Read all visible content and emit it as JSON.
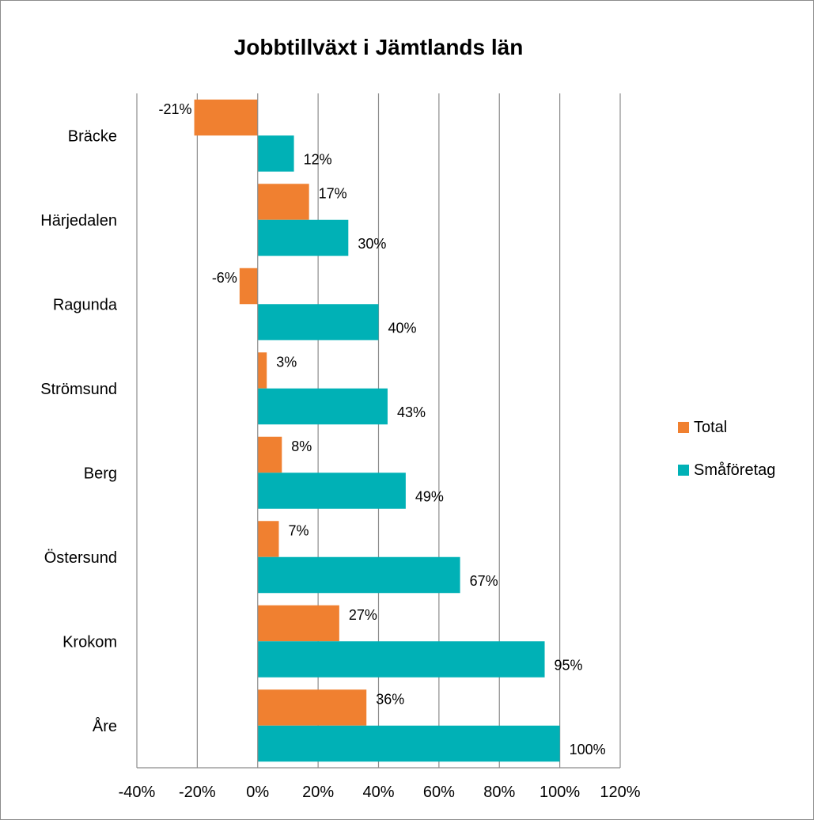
{
  "chart_data": {
    "type": "bar",
    "orientation": "horizontal",
    "title": "Jobbtillväxt i Jämtlands län",
    "categories": [
      "Bräcke",
      "Härjedalen",
      "Ragunda",
      "Strömsund",
      "Berg",
      "Östersund",
      "Krokom",
      "Åre"
    ],
    "series": [
      {
        "name": "Total",
        "color": "#F08030",
        "values": [
          -21,
          17,
          -6,
          3,
          8,
          7,
          27,
          36
        ],
        "labels": [
          "-21%",
          "17%",
          "-6%",
          "3%",
          "8%",
          "7%",
          "27%",
          "36%"
        ]
      },
      {
        "name": "Småföretag",
        "color": "#00B1B6",
        "values": [
          12,
          30,
          40,
          43,
          49,
          67,
          95,
          100
        ],
        "labels": [
          "12%",
          "30%",
          "40%",
          "43%",
          "49%",
          "67%",
          "95%",
          "100%"
        ]
      }
    ],
    "xlim": [
      -40,
      120
    ],
    "xticks": [
      -40,
      -20,
      0,
      20,
      40,
      60,
      80,
      100,
      120
    ],
    "xtick_labels": [
      "-40%",
      "-20%",
      "0%",
      "20%",
      "40%",
      "60%",
      "80%",
      "100%",
      "120%"
    ],
    "grid": true,
    "legend_position": "right"
  }
}
